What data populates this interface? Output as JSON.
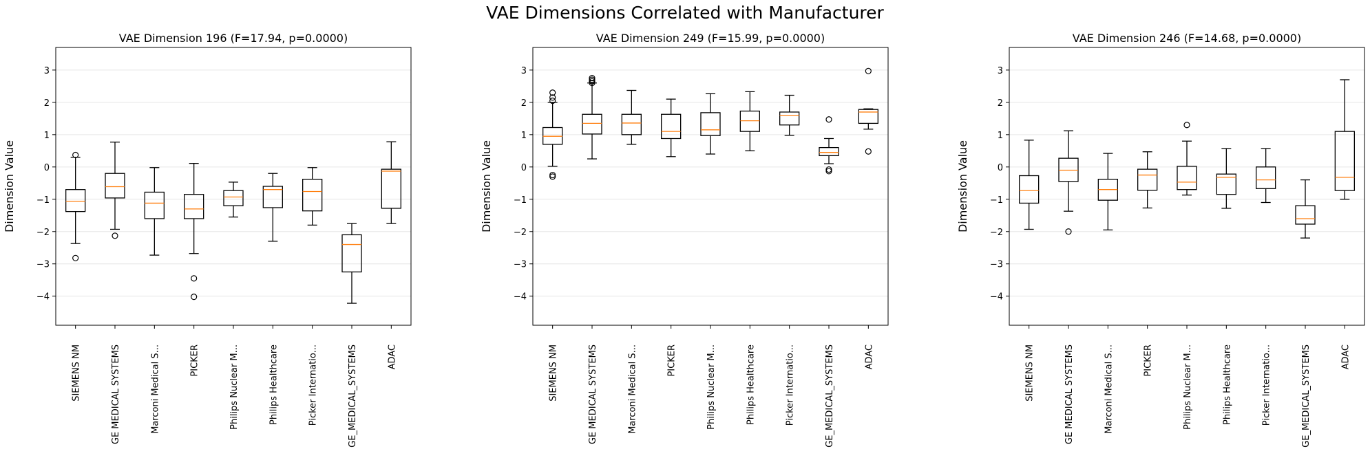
{
  "figure": {
    "title": "VAE Dimensions Correlated with Manufacturer"
  },
  "chart_data": [
    {
      "type": "box",
      "title": "VAE Dimension 196 (F=17.94, p=0.0000)",
      "xlabel": "",
      "ylabel": "Dimension Value",
      "ylim": [
        -4.9,
        3.7
      ],
      "yticks": [
        3,
        2,
        1,
        0,
        -1,
        -2,
        -3,
        -4
      ],
      "grid": "y",
      "categories": [
        "SIEMENS NM",
        "GE MEDICAL SYSTEMS",
        "Marconi Medical S...",
        "PICKER",
        "Philips Nuclear M...",
        "Philips Healthcare",
        "Picker Internatio...",
        "GE_MEDICAL_SYSTEMS",
        "ADAC"
      ],
      "boxes": [
        {
          "whislo": -2.37,
          "q1": -1.38,
          "med": -1.06,
          "q3": -0.7,
          "whishi": 0.3,
          "fliers": [
            0.37,
            -2.82
          ]
        },
        {
          "whislo": -1.93,
          "q1": -0.96,
          "med": -0.61,
          "q3": -0.2,
          "whishi": 0.77,
          "fliers": [
            -2.13
          ]
        },
        {
          "whislo": -2.73,
          "q1": -1.6,
          "med": -1.12,
          "q3": -0.78,
          "whishi": -0.02,
          "fliers": []
        },
        {
          "whislo": -2.68,
          "q1": -1.6,
          "med": -1.3,
          "q3": -0.85,
          "whishi": 0.11,
          "fliers": [
            -3.45,
            -4.02
          ]
        },
        {
          "whislo": -1.55,
          "q1": -1.2,
          "med": -0.93,
          "q3": -0.73,
          "whishi": -0.47,
          "fliers": []
        },
        {
          "whislo": -2.3,
          "q1": -1.26,
          "med": -0.7,
          "q3": -0.6,
          "whishi": -0.2,
          "fliers": []
        },
        {
          "whislo": -1.8,
          "q1": -1.36,
          "med": -0.76,
          "q3": -0.38,
          "whishi": -0.02,
          "fliers": []
        },
        {
          "whislo": -4.22,
          "q1": -3.25,
          "med": -2.4,
          "q3": -2.1,
          "whishi": -1.75,
          "fliers": []
        },
        {
          "whislo": -1.75,
          "q1": -1.28,
          "med": -0.13,
          "q3": -0.07,
          "whishi": 0.78,
          "fliers": []
        }
      ]
    },
    {
      "type": "box",
      "title": "VAE Dimension 249 (F=15.99, p=0.0000)",
      "xlabel": "",
      "ylabel": "Dimension Value",
      "ylim": [
        -4.9,
        3.7
      ],
      "yticks": [
        3,
        2,
        1,
        0,
        -1,
        -2,
        -3,
        -4
      ],
      "grid": "y",
      "categories": [
        "SIEMENS NM",
        "GE MEDICAL SYSTEMS",
        "Marconi Medical S...",
        "PICKER",
        "Philips Nuclear M...",
        "Philips Healthcare",
        "Picker Internatio...",
        "GE_MEDICAL_SYSTEMS",
        "ADAC"
      ],
      "boxes": [
        {
          "whislo": 0.02,
          "q1": 0.7,
          "med": 0.95,
          "q3": 1.22,
          "whishi": 2.0,
          "fliers": [
            2.3,
            2.15,
            2.05,
            -0.25,
            -0.3
          ]
        },
        {
          "whislo": 0.25,
          "q1": 1.02,
          "med": 1.35,
          "q3": 1.63,
          "whishi": 2.6,
          "fliers": [
            2.6,
            2.65,
            2.7,
            2.75
          ]
        },
        {
          "whislo": 0.7,
          "q1": 1.0,
          "med": 1.36,
          "q3": 1.63,
          "whishi": 2.37,
          "fliers": []
        },
        {
          "whislo": 0.32,
          "q1": 0.88,
          "med": 1.1,
          "q3": 1.63,
          "whishi": 2.1,
          "fliers": []
        },
        {
          "whislo": 0.4,
          "q1": 0.97,
          "med": 1.15,
          "q3": 1.68,
          "whishi": 2.27,
          "fliers": []
        },
        {
          "whislo": 0.5,
          "q1": 1.1,
          "med": 1.43,
          "q3": 1.73,
          "whishi": 2.33,
          "fliers": []
        },
        {
          "whislo": 0.98,
          "q1": 1.3,
          "med": 1.6,
          "q3": 1.7,
          "whishi": 2.22,
          "fliers": []
        },
        {
          "whislo": 0.1,
          "q1": 0.35,
          "med": 0.45,
          "q3": 0.6,
          "whishi": 0.88,
          "fliers": [
            1.47,
            -0.08,
            -0.13
          ]
        },
        {
          "whislo": 1.17,
          "q1": 1.35,
          "med": 1.7,
          "q3": 1.78,
          "whishi": 1.8,
          "fliers": [
            2.97,
            0.48
          ]
        }
      ]
    },
    {
      "type": "box",
      "title": "VAE Dimension 246 (F=14.68, p=0.0000)",
      "xlabel": "",
      "ylabel": "Dimension Value",
      "ylim": [
        -4.9,
        3.7
      ],
      "yticks": [
        3,
        2,
        1,
        0,
        -1,
        -2,
        -3,
        -4
      ],
      "grid": "y",
      "categories": [
        "SIEMENS NM",
        "GE MEDICAL SYSTEMS",
        "Marconi Medical S...",
        "PICKER",
        "Philips Nuclear M...",
        "Philips Healthcare",
        "Picker Internatio...",
        "GE_MEDICAL_SYSTEMS",
        "ADAC"
      ],
      "boxes": [
        {
          "whislo": -1.93,
          "q1": -1.12,
          "med": -0.73,
          "q3": -0.27,
          "whishi": 0.83,
          "fliers": []
        },
        {
          "whislo": -1.37,
          "q1": -0.45,
          "med": -0.1,
          "q3": 0.27,
          "whishi": 1.12,
          "fliers": [
            -2.0
          ]
        },
        {
          "whislo": -1.95,
          "q1": -1.03,
          "med": -0.7,
          "q3": -0.38,
          "whishi": 0.42,
          "fliers": []
        },
        {
          "whislo": -1.27,
          "q1": -0.72,
          "med": -0.25,
          "q3": -0.07,
          "whishi": 0.47,
          "fliers": []
        },
        {
          "whislo": -0.87,
          "q1": -0.7,
          "med": -0.47,
          "q3": 0.02,
          "whishi": 0.8,
          "fliers": [
            1.3
          ]
        },
        {
          "whislo": -1.28,
          "q1": -0.85,
          "med": -0.32,
          "q3": -0.22,
          "whishi": 0.57,
          "fliers": []
        },
        {
          "whislo": -1.1,
          "q1": -0.67,
          "med": -0.4,
          "q3": 0.0,
          "whishi": 0.57,
          "fliers": []
        },
        {
          "whislo": -2.2,
          "q1": -1.77,
          "med": -1.6,
          "q3": -1.2,
          "whishi": -0.4,
          "fliers": []
        },
        {
          "whislo": -1.0,
          "q1": -0.73,
          "med": -0.32,
          "q3": 1.1,
          "whishi": 2.7,
          "fliers": []
        }
      ]
    }
  ]
}
